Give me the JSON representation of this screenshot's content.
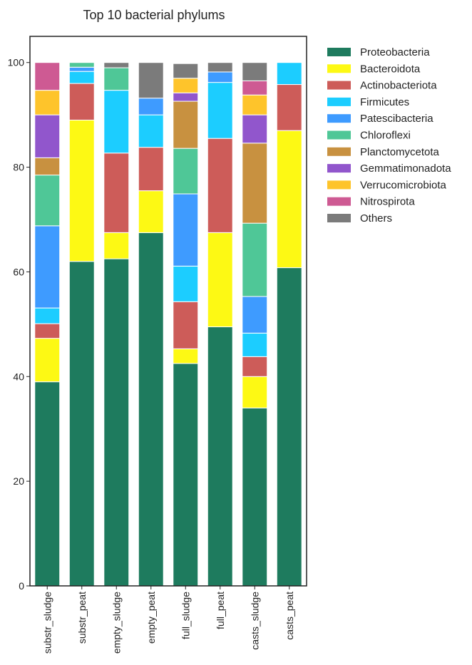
{
  "chart_data": {
    "type": "bar",
    "stacked": true,
    "title": "Top 10 bacterial phylums",
    "xlabel": "",
    "ylabel": "",
    "ylim": [
      0,
      105
    ],
    "yticks": [
      0,
      20,
      40,
      60,
      80,
      100
    ],
    "legend_position": "outside-top-right",
    "grid": false,
    "categories": [
      "substr_sludge",
      "substr_peat",
      "empty_sludge",
      "empty_peat",
      "full_sludge",
      "full_peat",
      "casts_sludge",
      "casts_peat"
    ],
    "series": [
      {
        "name": "Proteobacteria",
        "color": "#1e7b5e",
        "values": [
          39.0,
          62.0,
          62.5,
          67.5,
          42.5,
          49.5,
          34.0,
          60.8
        ]
      },
      {
        "name": "Bacteroidota",
        "color": "#fdf914",
        "values": [
          8.3,
          27.0,
          5.0,
          8.0,
          2.8,
          18.0,
          6.0,
          26.2
        ]
      },
      {
        "name": "Actinobacteriota",
        "color": "#cd5c59",
        "values": [
          2.8,
          7.0,
          15.2,
          8.3,
          9.0,
          18.0,
          3.8,
          8.8
        ]
      },
      {
        "name": "Firmicutes",
        "color": "#1ccdff",
        "values": [
          3.0,
          2.3,
          12.0,
          6.2,
          6.8,
          10.7,
          4.5,
          4.2
        ]
      },
      {
        "name": "Patescibacteria",
        "color": "#3e9bff",
        "values": [
          15.7,
          0.8,
          0.0,
          3.2,
          13.8,
          2.0,
          7.0,
          0.0
        ]
      },
      {
        "name": "Chloroflexi",
        "color": "#4fc797",
        "values": [
          9.7,
          0.9,
          4.3,
          0.0,
          8.7,
          0.0,
          14.0,
          0.0
        ]
      },
      {
        "name": "Planctomycetota",
        "color": "#c89140",
        "values": [
          3.3,
          0.0,
          0.0,
          0.0,
          9.0,
          0.0,
          15.3,
          0.0
        ]
      },
      {
        "name": "Gemmatimonadota",
        "color": "#9156cc",
        "values": [
          8.2,
          0.0,
          0.0,
          0.0,
          1.6,
          0.0,
          5.4,
          0.0
        ]
      },
      {
        "name": "Verrucomicrobiota",
        "color": "#fec42b",
        "values": [
          4.7,
          0.0,
          0.0,
          0.0,
          2.8,
          0.0,
          3.8,
          0.0
        ]
      },
      {
        "name": "Nitrospirota",
        "color": "#ce5a93",
        "values": [
          5.3,
          0.0,
          0.0,
          0.0,
          0.0,
          0.0,
          2.7,
          0.0
        ]
      },
      {
        "name": "Others",
        "color": "#7b7b7b",
        "values": [
          0.0,
          0.0,
          1.0,
          6.8,
          2.8,
          1.8,
          3.5,
          0.0
        ]
      }
    ]
  }
}
